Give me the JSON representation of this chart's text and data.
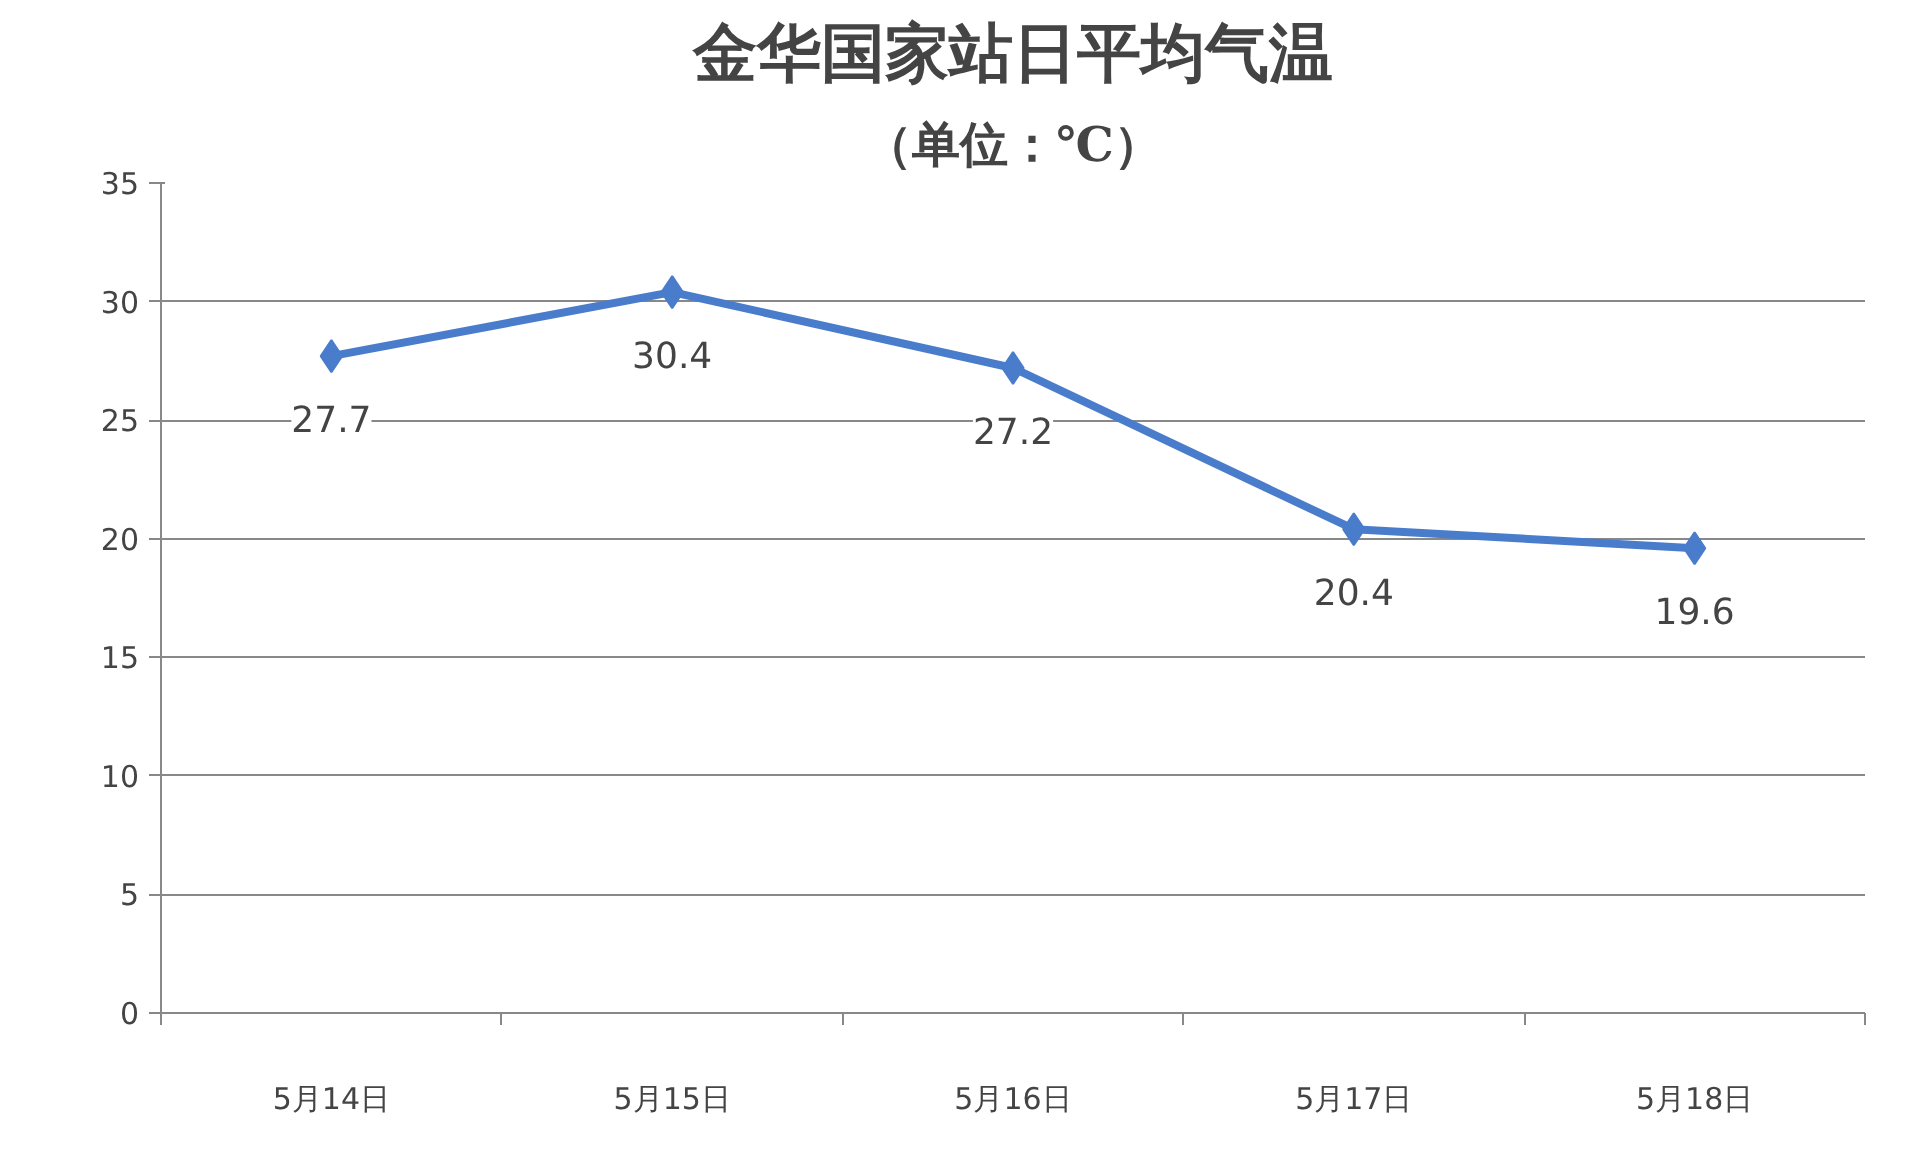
{
  "chart_data": {
    "type": "line",
    "title": "金华国家站日平均气温",
    "subtitle": "（单位：℃）",
    "categories": [
      "5月14日",
      "5月15日",
      "5月16日",
      "5月17日",
      "5月18日"
    ],
    "series": [
      {
        "color": "#4a7ccc",
        "values": [
          27.7,
          30.4,
          27.2,
          20.4,
          19.6
        ]
      }
    ],
    "ylim": [
      0,
      35
    ],
    "yticks": [
      0,
      5,
      10,
      15,
      20,
      25,
      30,
      35
    ],
    "grid": "y",
    "marker": "diamond",
    "line_style": "solid",
    "data_labels": true
  }
}
